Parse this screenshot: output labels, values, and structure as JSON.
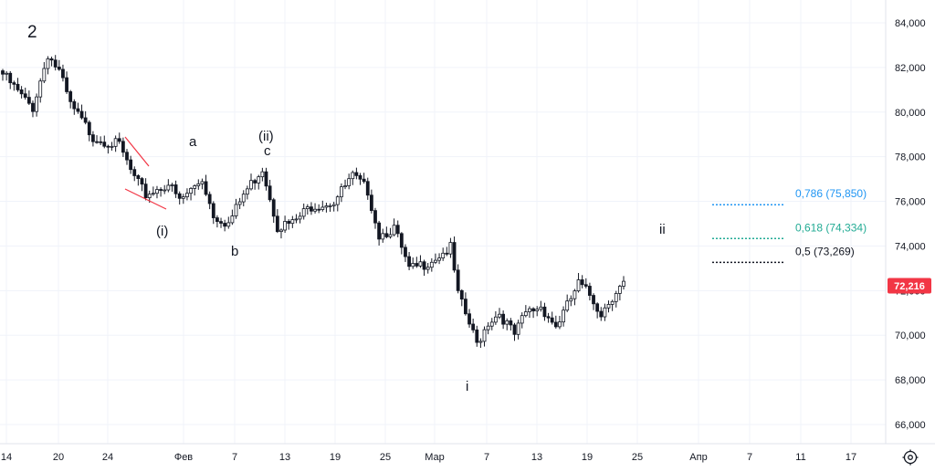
{
  "colors": {
    "background": "#ffffff",
    "grid": "#f0f3fa",
    "candle": "#131722",
    "current_price_tag": "#f23645",
    "fib_0786": "#2196f3",
    "fib_0618": "#22ab94",
    "fib_05": "#131722",
    "trendline": "#f23645"
  },
  "x_axis": {
    "labels": [
      "14",
      "20",
      "24",
      "Фев",
      "7",
      "13",
      "19",
      "25",
      "Мар",
      "7",
      "13",
      "19",
      "25",
      "Апр",
      "7",
      "11",
      "17"
    ]
  },
  "y_axis": {
    "labels": [
      "84,000",
      "82,000",
      "80,000",
      "78,000",
      "76,000",
      "74,000",
      "72,000",
      "70,000",
      "68,000",
      "66,000"
    ],
    "current_price": "72,216"
  },
  "wave_labels": {
    "two": "2",
    "i_paren": "(i)",
    "a": "a",
    "ii_paren": "(ii)",
    "c": "c",
    "b": "b",
    "i": "i",
    "ii": "ii"
  },
  "fib_levels": [
    {
      "label": "0,786 (75,850)",
      "value": 75850,
      "color": "#2196f3"
    },
    {
      "label": "0,618 (74,334)",
      "value": 74334,
      "color": "#22ab94"
    },
    {
      "label": "0,5 (73,269)",
      "value": 73269,
      "color": "#131722"
    }
  ],
  "settings_icon": "settings-icon",
  "chart_data": {
    "type": "candlestick",
    "y_range": [
      65000,
      85000
    ],
    "current_price": 72216,
    "x_ticks": [
      "14",
      "20",
      "24",
      "Фев",
      "7",
      "13",
      "19",
      "25",
      "Мар",
      "7",
      "13",
      "19",
      "25",
      "Апр",
      "7",
      "11",
      "17"
    ],
    "close_anchors": [
      [
        0,
        81700
      ],
      [
        6,
        80500
      ],
      [
        8,
        80200
      ],
      [
        12,
        82600
      ],
      [
        15,
        81800
      ],
      [
        18,
        80300
      ],
      [
        24,
        78900
      ],
      [
        31,
        78500
      ],
      [
        35,
        77000
      ],
      [
        38,
        76300
      ],
      [
        44,
        76800
      ],
      [
        47,
        76000
      ],
      [
        53,
        77000
      ],
      [
        56,
        75400
      ],
      [
        60,
        75000
      ],
      [
        64,
        76300
      ],
      [
        69,
        77500
      ],
      [
        73,
        74900
      ],
      [
        77,
        75000
      ],
      [
        82,
        75800
      ],
      [
        88,
        76000
      ],
      [
        93,
        77100
      ],
      [
        97,
        76500
      ],
      [
        100,
        74500
      ],
      [
        104,
        74800
      ],
      [
        108,
        72900
      ],
      [
        112,
        73200
      ],
      [
        116,
        73600
      ],
      [
        119,
        73900
      ],
      [
        121,
        71800
      ],
      [
        124,
        70500
      ],
      [
        126,
        69600
      ],
      [
        129,
        70600
      ],
      [
        132,
        71000
      ],
      [
        136,
        70000
      ],
      [
        139,
        71000
      ],
      [
        143,
        71300
      ],
      [
        147,
        70400
      ],
      [
        150,
        71300
      ],
      [
        153,
        72300
      ],
      [
        156,
        71800
      ],
      [
        159,
        71000
      ],
      [
        163,
        72000
      ],
      [
        165,
        72300
      ]
    ]
  }
}
